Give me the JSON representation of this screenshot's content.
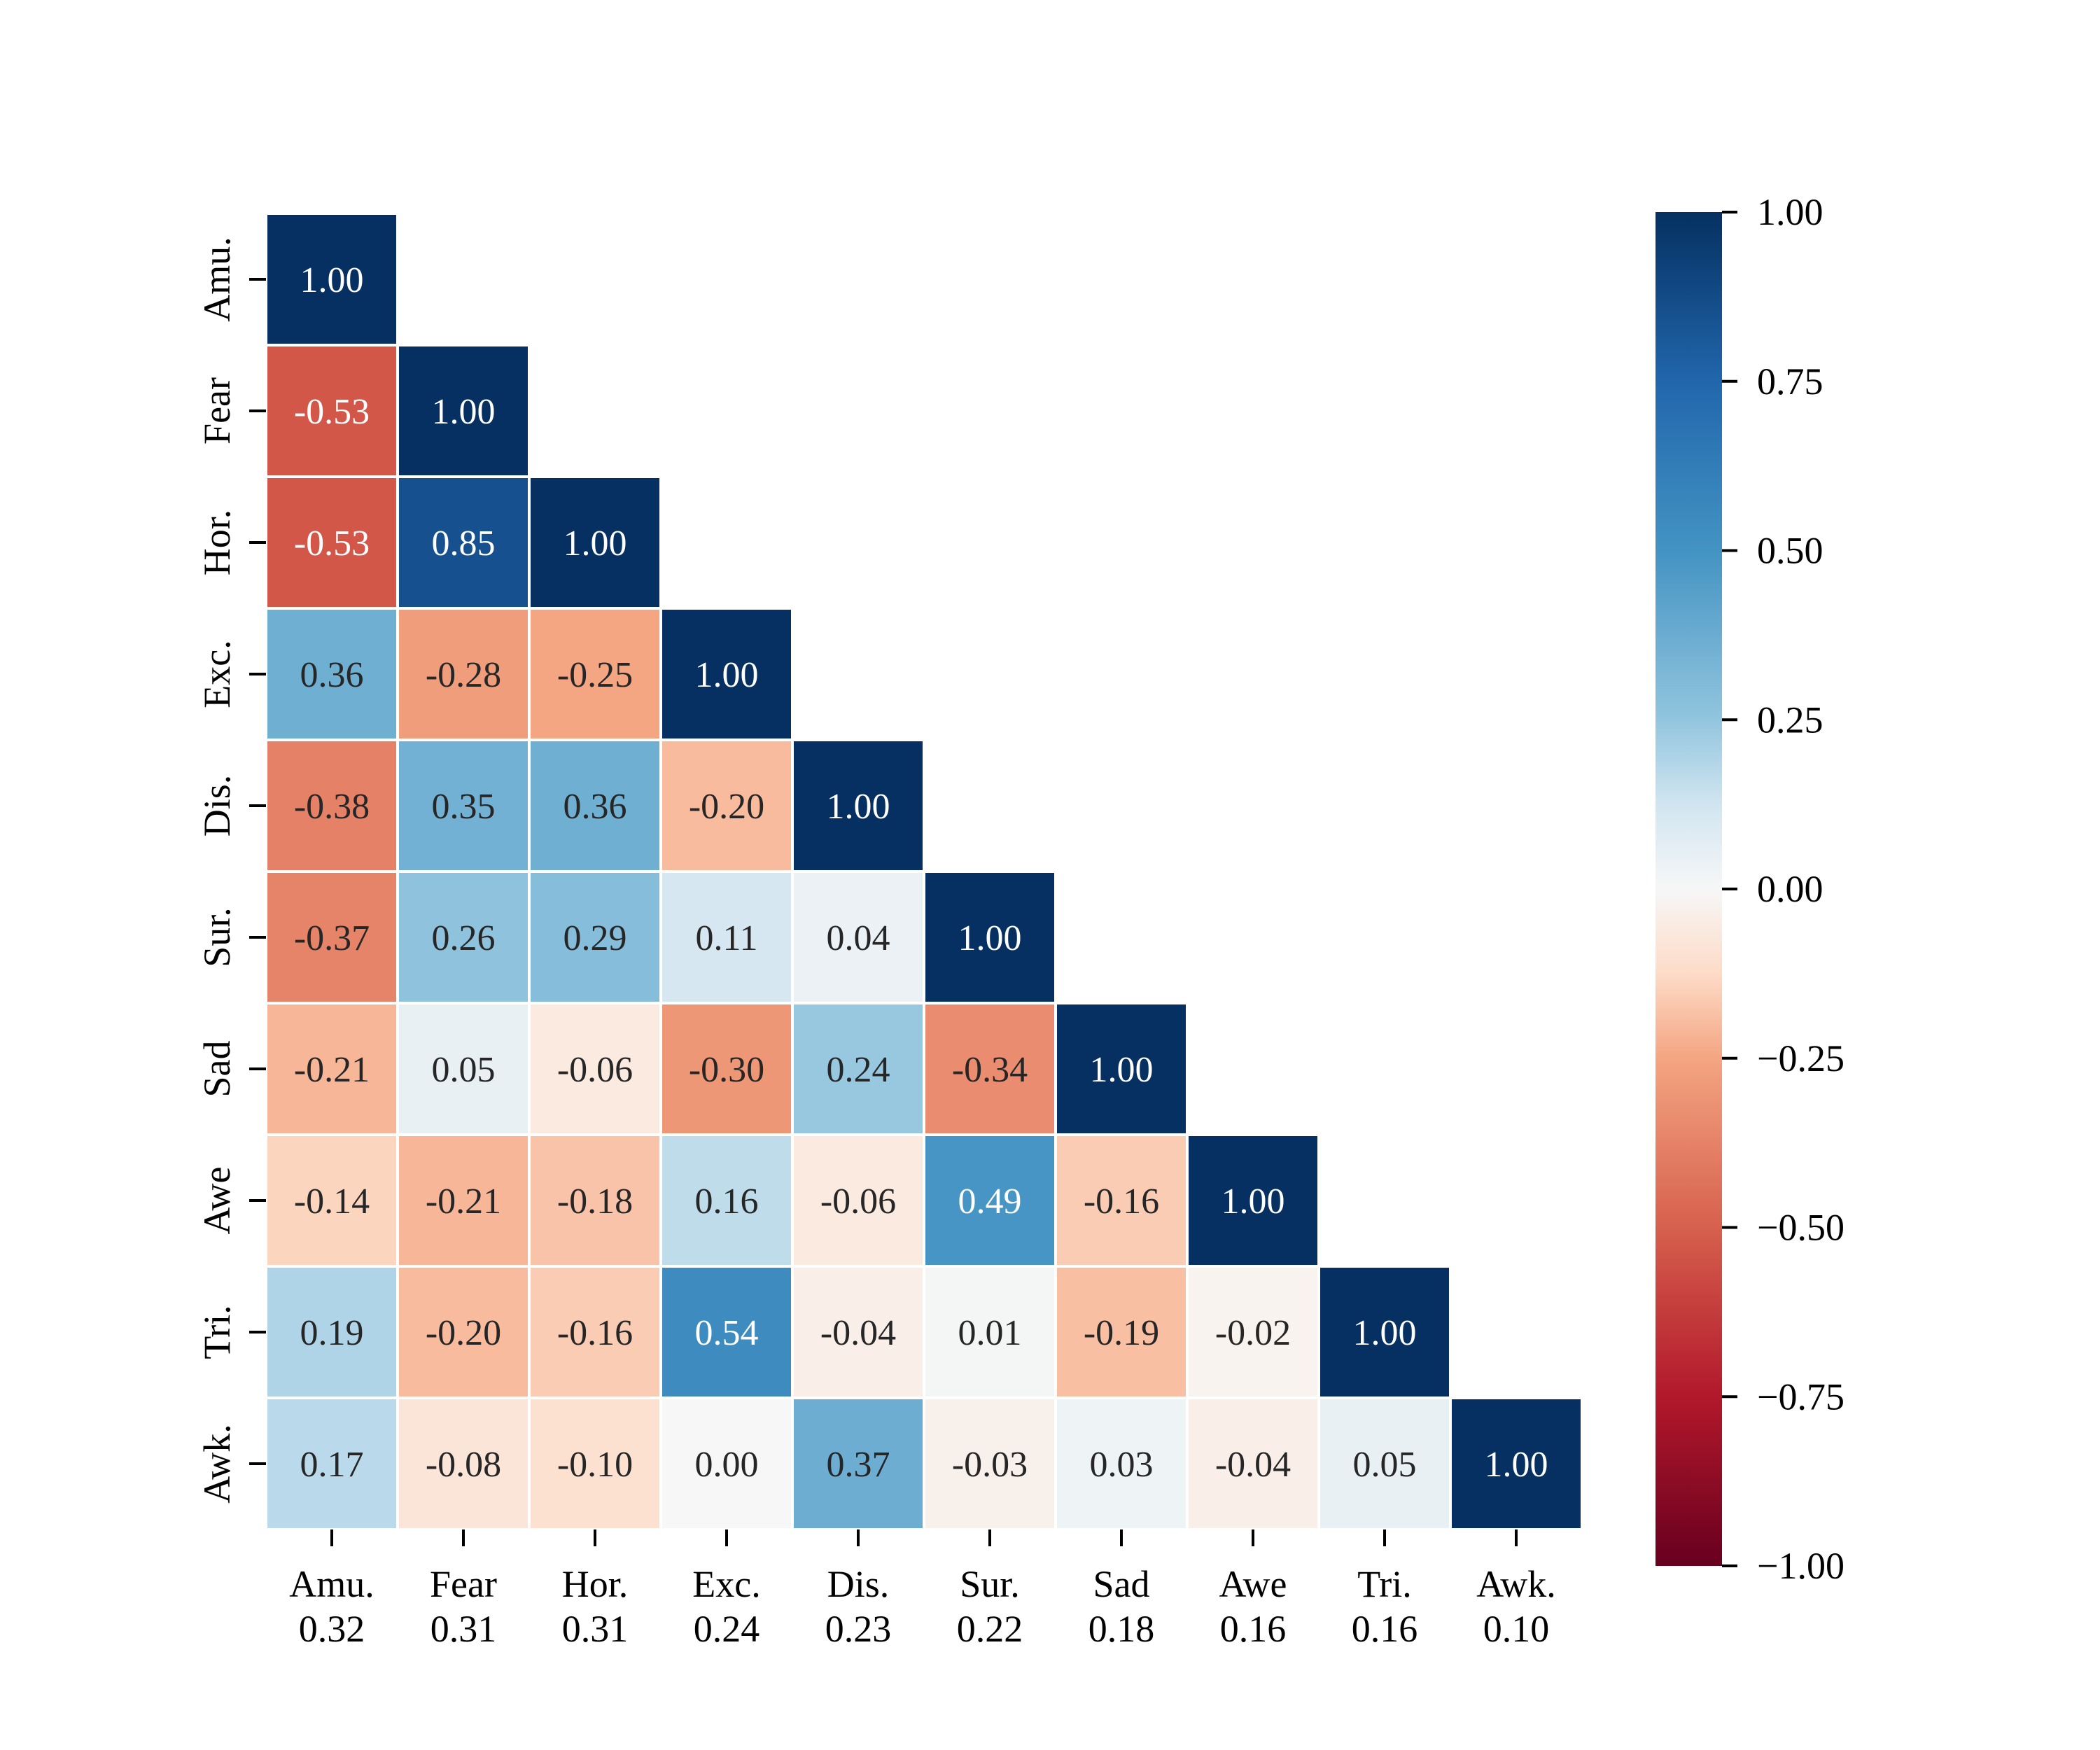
{
  "chart_data": {
    "type": "heatmap",
    "title": "",
    "xlabel": "",
    "ylabel": "",
    "row_labels": [
      "Amu.",
      "Fear",
      "Hor.",
      "Exc.",
      "Dis.",
      "Sur.",
      "Sad",
      "Awe",
      "Tri.",
      "Awk."
    ],
    "col_labels": [
      "Amu.",
      "Fear",
      "Hor.",
      "Exc.",
      "Dis.",
      "Sur.",
      "Sad",
      "Awe",
      "Tri.",
      "Awk."
    ],
    "col_sublabels": [
      "0.32",
      "0.31",
      "0.31",
      "0.24",
      "0.23",
      "0.22",
      "0.18",
      "0.16",
      "0.16",
      "0.10"
    ],
    "mask": "upper-triangle",
    "values": [
      [
        1.0
      ],
      [
        -0.53,
        1.0
      ],
      [
        -0.53,
        0.85,
        1.0
      ],
      [
        0.36,
        -0.28,
        -0.25,
        1.0
      ],
      [
        -0.38,
        0.35,
        0.36,
        -0.2,
        1.0
      ],
      [
        -0.37,
        0.26,
        0.29,
        0.11,
        0.04,
        1.0
      ],
      [
        -0.21,
        0.05,
        -0.06,
        -0.3,
        0.24,
        -0.34,
        1.0
      ],
      [
        -0.14,
        -0.21,
        -0.18,
        0.16,
        -0.06,
        0.49,
        -0.16,
        1.0
      ],
      [
        0.19,
        -0.2,
        -0.16,
        0.54,
        -0.04,
        0.01,
        -0.19,
        -0.02,
        1.0
      ],
      [
        0.17,
        -0.08,
        -0.1,
        0.0,
        0.37,
        -0.03,
        0.03,
        -0.04,
        0.05,
        1.0
      ]
    ],
    "display_values": [
      [
        "1.00"
      ],
      [
        "-0.53",
        "1.00"
      ],
      [
        "-0.53",
        "0.85",
        "1.00"
      ],
      [
        "0.36",
        "-0.28",
        "-0.25",
        "1.00"
      ],
      [
        "-0.38",
        "0.35",
        "0.36",
        "-0.20",
        "1.00"
      ],
      [
        "-0.37",
        "0.26",
        "0.29",
        "0.11",
        "0.04",
        "1.00"
      ],
      [
        "-0.21",
        "0.05",
        "-0.06",
        "-0.30",
        "0.24",
        "-0.34",
        "1.00"
      ],
      [
        "-0.14",
        "-0.21",
        "-0.18",
        "0.16",
        "-0.06",
        "0.49",
        "-0.16",
        "1.00"
      ],
      [
        "0.19",
        "-0.20",
        "-0.16",
        "0.54",
        "-0.04",
        "0.01",
        "-0.19",
        "-0.02",
        "1.00"
      ],
      [
        "0.17",
        "-0.08",
        "-0.10",
        "0.00",
        "0.37",
        "-0.03",
        "0.03",
        "-0.04",
        "0.05",
        "1.00"
      ]
    ],
    "colormap": "RdBu",
    "vmin": -1.0,
    "vmax": 1.0,
    "colorbar": {
      "ticks": [
        1.0,
        0.75,
        0.5,
        0.25,
        0.0,
        -0.25,
        -0.5,
        -0.75,
        -1.0
      ],
      "tick_labels": [
        "1.00",
        "0.75",
        "0.50",
        "0.25",
        "0.00",
        "−0.25",
        "−0.50",
        "−0.75",
        "−1.00"
      ],
      "placement": "right"
    },
    "colormap_stops": [
      [
        -1.0,
        "#67001f"
      ],
      [
        -0.75,
        "#b2182b"
      ],
      [
        -0.5,
        "#d6604d"
      ],
      [
        -0.25,
        "#f4a582"
      ],
      [
        -0.125,
        "#fddbc7"
      ],
      [
        0.0,
        "#f7f7f7"
      ],
      [
        0.125,
        "#d1e5f0"
      ],
      [
        0.25,
        "#92c5de"
      ],
      [
        0.5,
        "#4393c3"
      ],
      [
        0.75,
        "#2166ac"
      ],
      [
        1.0,
        "#053061"
      ]
    ],
    "grid": false
  }
}
